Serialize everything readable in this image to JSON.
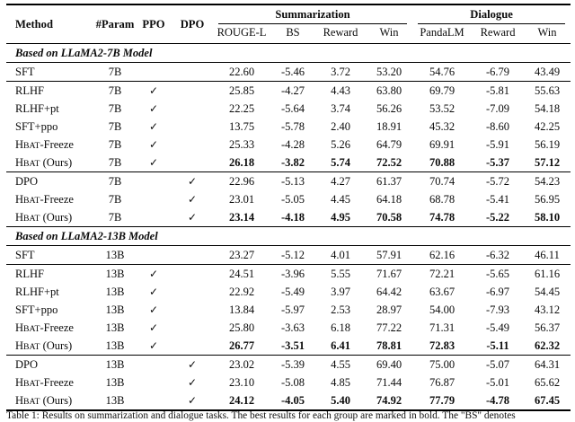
{
  "table": {
    "check_glyph": "✓",
    "header": {
      "method": "Method",
      "param": "#Param",
      "ppo": "PPO",
      "dpo": "DPO",
      "summarization": "Summarization",
      "dialogue": "Dialogue"
    },
    "sub": [
      "ROUGE-L",
      "BS",
      "Reward",
      "Win",
      "PandaLM",
      "Reward",
      "Win"
    ],
    "sections": [
      {
        "heading": "Based on LLaMA2-7B Model",
        "groups": [
          [
            {
              "method": [
                {
                  "t": "SFT"
                }
              ],
              "param": "7B",
              "ppo": false,
              "dpo": false,
              "bold": false,
              "vals": [
                "22.60",
                "-5.46",
                "3.72",
                "53.20",
                "54.76",
                "-6.79",
                "43.49"
              ]
            }
          ],
          [
            {
              "method": [
                {
                  "t": "RLHF"
                }
              ],
              "param": "7B",
              "ppo": true,
              "dpo": false,
              "bold": false,
              "vals": [
                "25.85",
                "-4.27",
                "4.43",
                "63.80",
                "69.79",
                "-5.81",
                "55.63"
              ]
            },
            {
              "method": [
                {
                  "t": "RLHF+pt"
                }
              ],
              "param": "7B",
              "ppo": true,
              "dpo": false,
              "bold": false,
              "vals": [
                "22.25",
                "-5.64",
                "3.74",
                "56.26",
                "53.52",
                "-7.09",
                "54.18"
              ]
            },
            {
              "method": [
                {
                  "t": "SFT+ppo"
                }
              ],
              "param": "7B",
              "ppo": true,
              "dpo": false,
              "bold": false,
              "vals": [
                "13.75",
                "-5.78",
                "2.40",
                "18.91",
                "45.32",
                "-8.60",
                "42.25"
              ]
            },
            {
              "method": [
                {
                  "t": "H"
                },
                {
                  "t": "BAT",
                  "sc": true
                },
                {
                  "t": "-Freeze"
                }
              ],
              "param": "7B",
              "ppo": true,
              "dpo": false,
              "bold": false,
              "vals": [
                "25.33",
                "-4.28",
                "5.26",
                "64.79",
                "69.91",
                "-5.91",
                "56.19"
              ]
            },
            {
              "method": [
                {
                  "t": "H"
                },
                {
                  "t": "BAT",
                  "sc": true
                },
                {
                  "t": " (Ours)"
                }
              ],
              "param": "7B",
              "ppo": true,
              "dpo": false,
              "bold": true,
              "vals": [
                "26.18",
                "-3.82",
                "5.74",
                "72.52",
                "70.88",
                "-5.37",
                "57.12"
              ]
            }
          ],
          [
            {
              "method": [
                {
                  "t": "DPO"
                }
              ],
              "param": "7B",
              "ppo": false,
              "dpo": true,
              "bold": false,
              "vals": [
                "22.96",
                "-5.13",
                "4.27",
                "61.37",
                "70.74",
                "-5.72",
                "54.23"
              ]
            },
            {
              "method": [
                {
                  "t": "H"
                },
                {
                  "t": "BAT",
                  "sc": true
                },
                {
                  "t": "-Freeze"
                }
              ],
              "param": "7B",
              "ppo": false,
              "dpo": true,
              "bold": false,
              "vals": [
                "23.01",
                "-5.05",
                "4.45",
                "64.18",
                "68.78",
                "-5.41",
                "56.95"
              ]
            },
            {
              "method": [
                {
                  "t": "H"
                },
                {
                  "t": "BAT",
                  "sc": true
                },
                {
                  "t": " (Ours)"
                }
              ],
              "param": "7B",
              "ppo": false,
              "dpo": true,
              "bold": true,
              "vals": [
                "23.14",
                "-4.18",
                "4.95",
                "70.58",
                "74.78",
                "-5.22",
                "58.10"
              ]
            }
          ]
        ]
      },
      {
        "heading": "Based on LLaMA2-13B Model",
        "groups": [
          [
            {
              "method": [
                {
                  "t": "SFT"
                }
              ],
              "param": "13B",
              "ppo": false,
              "dpo": false,
              "bold": false,
              "vals": [
                "23.27",
                "-5.12",
                "4.01",
                "57.91",
                "62.16",
                "-6.32",
                "46.11"
              ]
            }
          ],
          [
            {
              "method": [
                {
                  "t": "RLHF"
                }
              ],
              "param": "13B",
              "ppo": true,
              "dpo": false,
              "bold": false,
              "vals": [
                "24.51",
                "-3.96",
                "5.55",
                "71.67",
                "72.21",
                "-5.65",
                "61.16"
              ]
            },
            {
              "method": [
                {
                  "t": "RLHF+pt"
                }
              ],
              "param": "13B",
              "ppo": true,
              "dpo": false,
              "bold": false,
              "vals": [
                "22.92",
                "-5.49",
                "3.97",
                "64.42",
                "63.67",
                "-6.97",
                "54.45"
              ]
            },
            {
              "method": [
                {
                  "t": "SFT+ppo"
                }
              ],
              "param": "13B",
              "ppo": true,
              "dpo": false,
              "bold": false,
              "vals": [
                "13.84",
                "-5.97",
                "2.53",
                "28.97",
                "54.00",
                "-7.93",
                "43.12"
              ]
            },
            {
              "method": [
                {
                  "t": "H"
                },
                {
                  "t": "BAT",
                  "sc": true
                },
                {
                  "t": "-Freeze"
                }
              ],
              "param": "13B",
              "ppo": true,
              "dpo": false,
              "bold": false,
              "vals": [
                "25.80",
                "-3.63",
                "6.18",
                "77.22",
                "71.31",
                "-5.49",
                "56.37"
              ]
            },
            {
              "method": [
                {
                  "t": "H"
                },
                {
                  "t": "BAT",
                  "sc": true
                },
                {
                  "t": " (Ours)"
                }
              ],
              "param": "13B",
              "ppo": true,
              "dpo": false,
              "bold": true,
              "vals": [
                "26.77",
                "-3.51",
                "6.41",
                "78.81",
                "72.83",
                "-5.11",
                "62.32"
              ]
            }
          ],
          [
            {
              "method": [
                {
                  "t": "DPO"
                }
              ],
              "param": "13B",
              "ppo": false,
              "dpo": true,
              "bold": false,
              "vals": [
                "23.02",
                "-5.39",
                "4.55",
                "69.40",
                "75.00",
                "-5.07",
                "64.31"
              ]
            },
            {
              "method": [
                {
                  "t": "H"
                },
                {
                  "t": "BAT",
                  "sc": true
                },
                {
                  "t": "-Freeze"
                }
              ],
              "param": "13B",
              "ppo": false,
              "dpo": true,
              "bold": false,
              "vals": [
                "23.10",
                "-5.08",
                "4.85",
                "71.44",
                "76.87",
                "-5.01",
                "65.62"
              ]
            },
            {
              "method": [
                {
                  "t": "H"
                },
                {
                  "t": "BAT",
                  "sc": true
                },
                {
                  "t": " (Ours)"
                }
              ],
              "param": "13B",
              "ppo": false,
              "dpo": true,
              "bold": true,
              "vals": [
                "24.12",
                "-4.05",
                "5.40",
                "74.92",
                "77.79",
                "-4.78",
                "67.45"
              ]
            }
          ]
        ]
      }
    ]
  },
  "caption": "Table 1: Results on summarization and dialogue tasks. The best results for each group are marked in bold. The \"BS\" denotes"
}
